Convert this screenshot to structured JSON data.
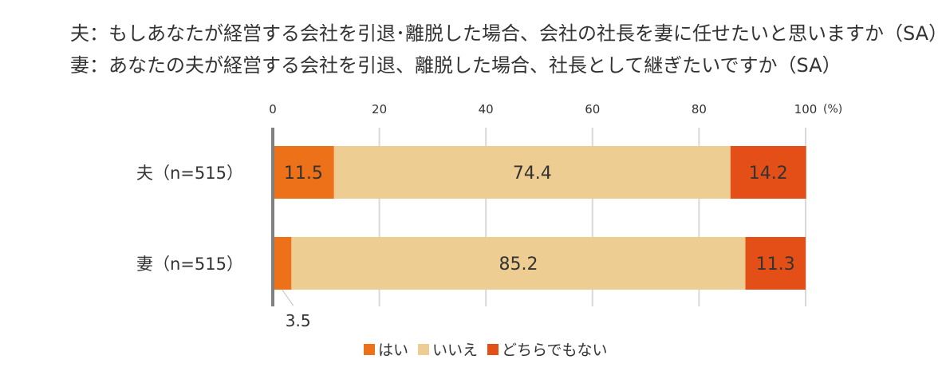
{
  "title": {
    "line1": "夫：もしあなたが経営する会社を引退･離脱した場合、会社の社長を妻に任せたいと思いますか（SA）",
    "line2": "妻：あなたの夫が経営する会社を引退、離脱した場合、社長として継ぎたいですか（SA）"
  },
  "chart_data": {
    "type": "bar",
    "orientation": "horizontal",
    "stacked": true,
    "categories": [
      "夫（n=515）",
      "妻（n=515）"
    ],
    "series": [
      {
        "name": "はい",
        "color": "#ED7118",
        "values": [
          11.5,
          3.5
        ]
      },
      {
        "name": "いいえ",
        "color": "#EECD93",
        "values": [
          74.4,
          85.2
        ]
      },
      {
        "name": "どちらでもない",
        "color": "#E44F18",
        "values": [
          14.2,
          11.3
        ]
      }
    ],
    "x_ticks": [
      0,
      20,
      40,
      60,
      80,
      100
    ],
    "x_unit": "(%)",
    "xlim": [
      0,
      100
    ],
    "grid": true,
    "legend_position": "bottom",
    "data_label_colors": [
      "#333333",
      "#333333",
      "#333333"
    ]
  }
}
